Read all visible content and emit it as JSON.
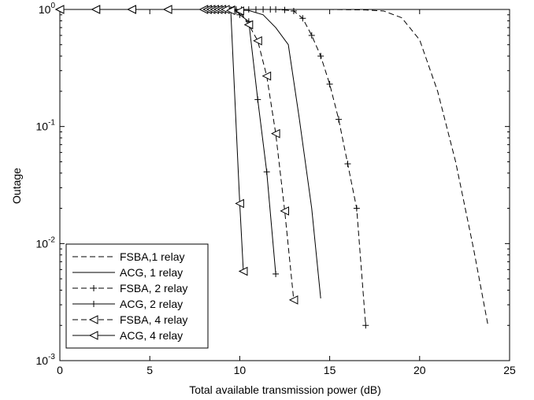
{
  "chart_data": {
    "type": "line",
    "title": "",
    "xlabel": "Total available transmission power (dB)",
    "ylabel": "Outage",
    "xlim": [
      0,
      25
    ],
    "ylim": [
      0.001,
      1
    ],
    "yscale": "log",
    "grid": false,
    "legend_position": "bottom-left",
    "x_ticks": [
      {
        "value": 0,
        "label": "0"
      },
      {
        "value": 5,
        "label": "5"
      },
      {
        "value": 10,
        "label": "10"
      },
      {
        "value": 15,
        "label": "15"
      },
      {
        "value": 20,
        "label": "20"
      },
      {
        "value": 25,
        "label": "25"
      }
    ],
    "y_ticks": [
      {
        "value": 1,
        "base": "10",
        "exp": "0"
      },
      {
        "value": 0.1,
        "base": "10",
        "exp": "-1"
      },
      {
        "value": 0.01,
        "base": "10",
        "exp": "-2"
      },
      {
        "value": 0.001,
        "base": "10",
        "exp": "-3"
      }
    ],
    "series": [
      {
        "name": "FSBA,1 relay",
        "line": "dashed",
        "marker": "none",
        "points": [
          [
            0,
            1
          ],
          [
            10,
            1
          ],
          [
            15,
            1
          ],
          [
            16,
            0.995
          ],
          [
            17,
            0.99
          ],
          [
            18,
            0.97
          ],
          [
            19,
            0.85
          ],
          [
            20,
            0.55
          ],
          [
            21,
            0.2
          ],
          [
            22,
            0.05
          ],
          [
            23,
            0.009
          ],
          [
            23.8,
            0.002
          ]
        ]
      },
      {
        "name": "ACG, 1 relay",
        "line": "solid",
        "marker": "none",
        "points": [
          [
            0,
            1
          ],
          [
            8,
            1
          ],
          [
            10.5,
            0.98
          ],
          [
            11.3,
            0.9
          ],
          [
            12,
            0.7
          ],
          [
            12.7,
            0.5
          ],
          [
            13.3,
            0.12
          ],
          [
            14,
            0.02
          ],
          [
            14.5,
            0.0034
          ]
        ]
      },
      {
        "name": "FSBA, 2 relay",
        "line": "dashed",
        "marker": "plus",
        "points": [
          [
            8.1,
            1
          ],
          [
            8.6,
            1
          ],
          [
            9.1,
            1
          ],
          [
            9.5,
            1
          ],
          [
            9.8,
            1
          ],
          [
            10.1,
            1
          ],
          [
            10.5,
            1
          ],
          [
            10.9,
            1
          ],
          [
            11.3,
            1
          ],
          [
            11.7,
            1
          ],
          [
            12,
            1
          ],
          [
            12.5,
            0.99
          ],
          [
            13,
            0.97
          ],
          [
            13.5,
            0.84
          ],
          [
            14,
            0.6
          ],
          [
            14.5,
            0.4
          ],
          [
            15,
            0.23
          ],
          [
            15.5,
            0.115
          ],
          [
            16,
            0.048
          ],
          [
            16.5,
            0.02
          ],
          [
            17,
            0.002
          ]
        ]
      },
      {
        "name": "ACG, 2 relay",
        "line": "solid",
        "marker": "plus",
        "points": [
          [
            8.1,
            1
          ],
          [
            8.5,
            1
          ],
          [
            8.8,
            1
          ],
          [
            9.1,
            1
          ],
          [
            9.5,
            1
          ],
          [
            9.8,
            0.97
          ],
          [
            10,
            0.9
          ],
          [
            10.5,
            0.79
          ],
          [
            11,
            0.17
          ],
          [
            11.5,
            0.041
          ],
          [
            12,
            0.0055
          ]
        ]
      },
      {
        "name": "FSBA, 4 relay",
        "line": "dashed",
        "marker": "triangle-left",
        "points": [
          [
            0,
            1
          ],
          [
            2,
            1
          ],
          [
            4,
            1
          ],
          [
            6,
            1
          ],
          [
            8,
            1
          ],
          [
            8.2,
            1
          ],
          [
            8.4,
            1
          ],
          [
            8.6,
            1
          ],
          [
            8.8,
            1
          ],
          [
            9,
            1
          ],
          [
            9.5,
            0.99
          ],
          [
            10,
            0.97
          ],
          [
            10.5,
            0.74
          ],
          [
            11,
            0.54
          ],
          [
            11.5,
            0.27
          ],
          [
            12,
            0.087
          ],
          [
            12.5,
            0.019
          ],
          [
            13,
            0.0033
          ]
        ]
      },
      {
        "name": "ACG, 4 relay",
        "line": "solid",
        "marker": "triangle-left",
        "points": [
          [
            0,
            1
          ],
          [
            2,
            1
          ],
          [
            4,
            1
          ],
          [
            6,
            1
          ],
          [
            8,
            1
          ],
          [
            8.2,
            1
          ],
          [
            8.4,
            1
          ],
          [
            8.6,
            1
          ],
          [
            8.8,
            1
          ],
          [
            9,
            1
          ],
          [
            9.2,
            1
          ],
          [
            9.5,
            0.98
          ],
          [
            10,
            0.022
          ],
          [
            10.2,
            0.0058
          ]
        ]
      }
    ]
  }
}
